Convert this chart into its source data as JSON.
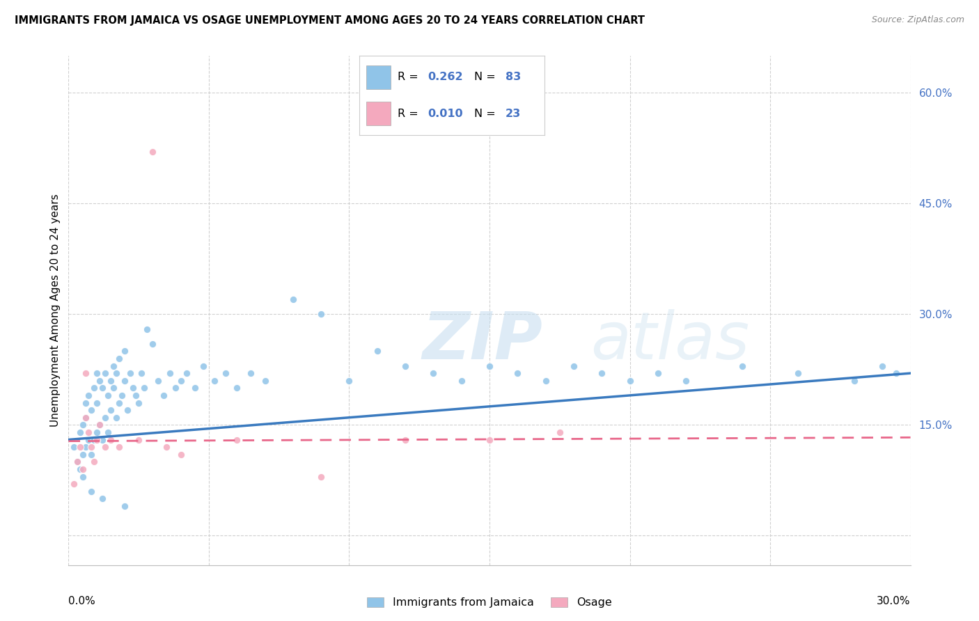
{
  "title": "IMMIGRANTS FROM JAMAICA VS OSAGE UNEMPLOYMENT AMONG AGES 20 TO 24 YEARS CORRELATION CHART",
  "source": "Source: ZipAtlas.com",
  "ylabel": "Unemployment Among Ages 20 to 24 years",
  "ylabel_right_ticks": [
    "60.0%",
    "45.0%",
    "30.0%",
    "15.0%"
  ],
  "ylabel_right_vals": [
    0.6,
    0.45,
    0.3,
    0.15
  ],
  "x_min": 0.0,
  "x_max": 0.3,
  "y_min": -0.04,
  "y_max": 0.65,
  "watermark": "ZIPatlas",
  "legend_label_blue": "Immigrants from Jamaica",
  "legend_label_pink": "Osage",
  "blue_color": "#90c4e8",
  "pink_color": "#f4a9be",
  "blue_line_color": "#3a7abf",
  "pink_line_color": "#e8678a",
  "blue_line_x": [
    0.0,
    0.3
  ],
  "blue_line_y": [
    0.13,
    0.22
  ],
  "pink_line_x": [
    0.0,
    0.3
  ],
  "pink_line_y": [
    0.128,
    0.133
  ],
  "grid_color": "#d0d0d0",
  "background_color": "#ffffff",
  "blue_scatter_x": [
    0.002,
    0.003,
    0.004,
    0.004,
    0.005,
    0.005,
    0.005,
    0.006,
    0.006,
    0.006,
    0.007,
    0.007,
    0.008,
    0.008,
    0.009,
    0.009,
    0.01,
    0.01,
    0.01,
    0.011,
    0.011,
    0.012,
    0.012,
    0.013,
    0.013,
    0.014,
    0.014,
    0.015,
    0.015,
    0.016,
    0.016,
    0.017,
    0.017,
    0.018,
    0.018,
    0.019,
    0.02,
    0.02,
    0.021,
    0.022,
    0.023,
    0.024,
    0.025,
    0.026,
    0.027,
    0.028,
    0.03,
    0.032,
    0.034,
    0.036,
    0.038,
    0.04,
    0.042,
    0.045,
    0.048,
    0.052,
    0.056,
    0.06,
    0.065,
    0.07,
    0.08,
    0.09,
    0.1,
    0.11,
    0.12,
    0.13,
    0.14,
    0.15,
    0.16,
    0.17,
    0.18,
    0.19,
    0.2,
    0.21,
    0.22,
    0.24,
    0.26,
    0.28,
    0.29,
    0.295,
    0.008,
    0.012,
    0.02
  ],
  "blue_scatter_y": [
    0.12,
    0.1,
    0.09,
    0.14,
    0.08,
    0.11,
    0.15,
    0.12,
    0.16,
    0.18,
    0.13,
    0.19,
    0.11,
    0.17,
    0.13,
    0.2,
    0.14,
    0.18,
    0.22,
    0.15,
    0.21,
    0.13,
    0.2,
    0.16,
    0.22,
    0.14,
    0.19,
    0.17,
    0.21,
    0.2,
    0.23,
    0.16,
    0.22,
    0.18,
    0.24,
    0.19,
    0.21,
    0.25,
    0.17,
    0.22,
    0.2,
    0.19,
    0.18,
    0.22,
    0.2,
    0.28,
    0.26,
    0.21,
    0.19,
    0.22,
    0.2,
    0.21,
    0.22,
    0.2,
    0.23,
    0.21,
    0.22,
    0.2,
    0.22,
    0.21,
    0.32,
    0.3,
    0.21,
    0.25,
    0.23,
    0.22,
    0.21,
    0.23,
    0.22,
    0.21,
    0.23,
    0.22,
    0.21,
    0.22,
    0.21,
    0.23,
    0.22,
    0.21,
    0.23,
    0.22,
    0.06,
    0.05,
    0.04
  ],
  "pink_scatter_x": [
    0.002,
    0.003,
    0.004,
    0.005,
    0.006,
    0.006,
    0.007,
    0.008,
    0.009,
    0.01,
    0.011,
    0.013,
    0.015,
    0.018,
    0.025,
    0.03,
    0.035,
    0.04,
    0.06,
    0.09,
    0.12,
    0.15,
    0.175
  ],
  "pink_scatter_y": [
    0.07,
    0.1,
    0.12,
    0.09,
    0.16,
    0.22,
    0.14,
    0.12,
    0.1,
    0.13,
    0.15,
    0.12,
    0.13,
    0.12,
    0.13,
    0.52,
    0.12,
    0.11,
    0.13,
    0.08,
    0.13,
    0.13,
    0.14
  ]
}
